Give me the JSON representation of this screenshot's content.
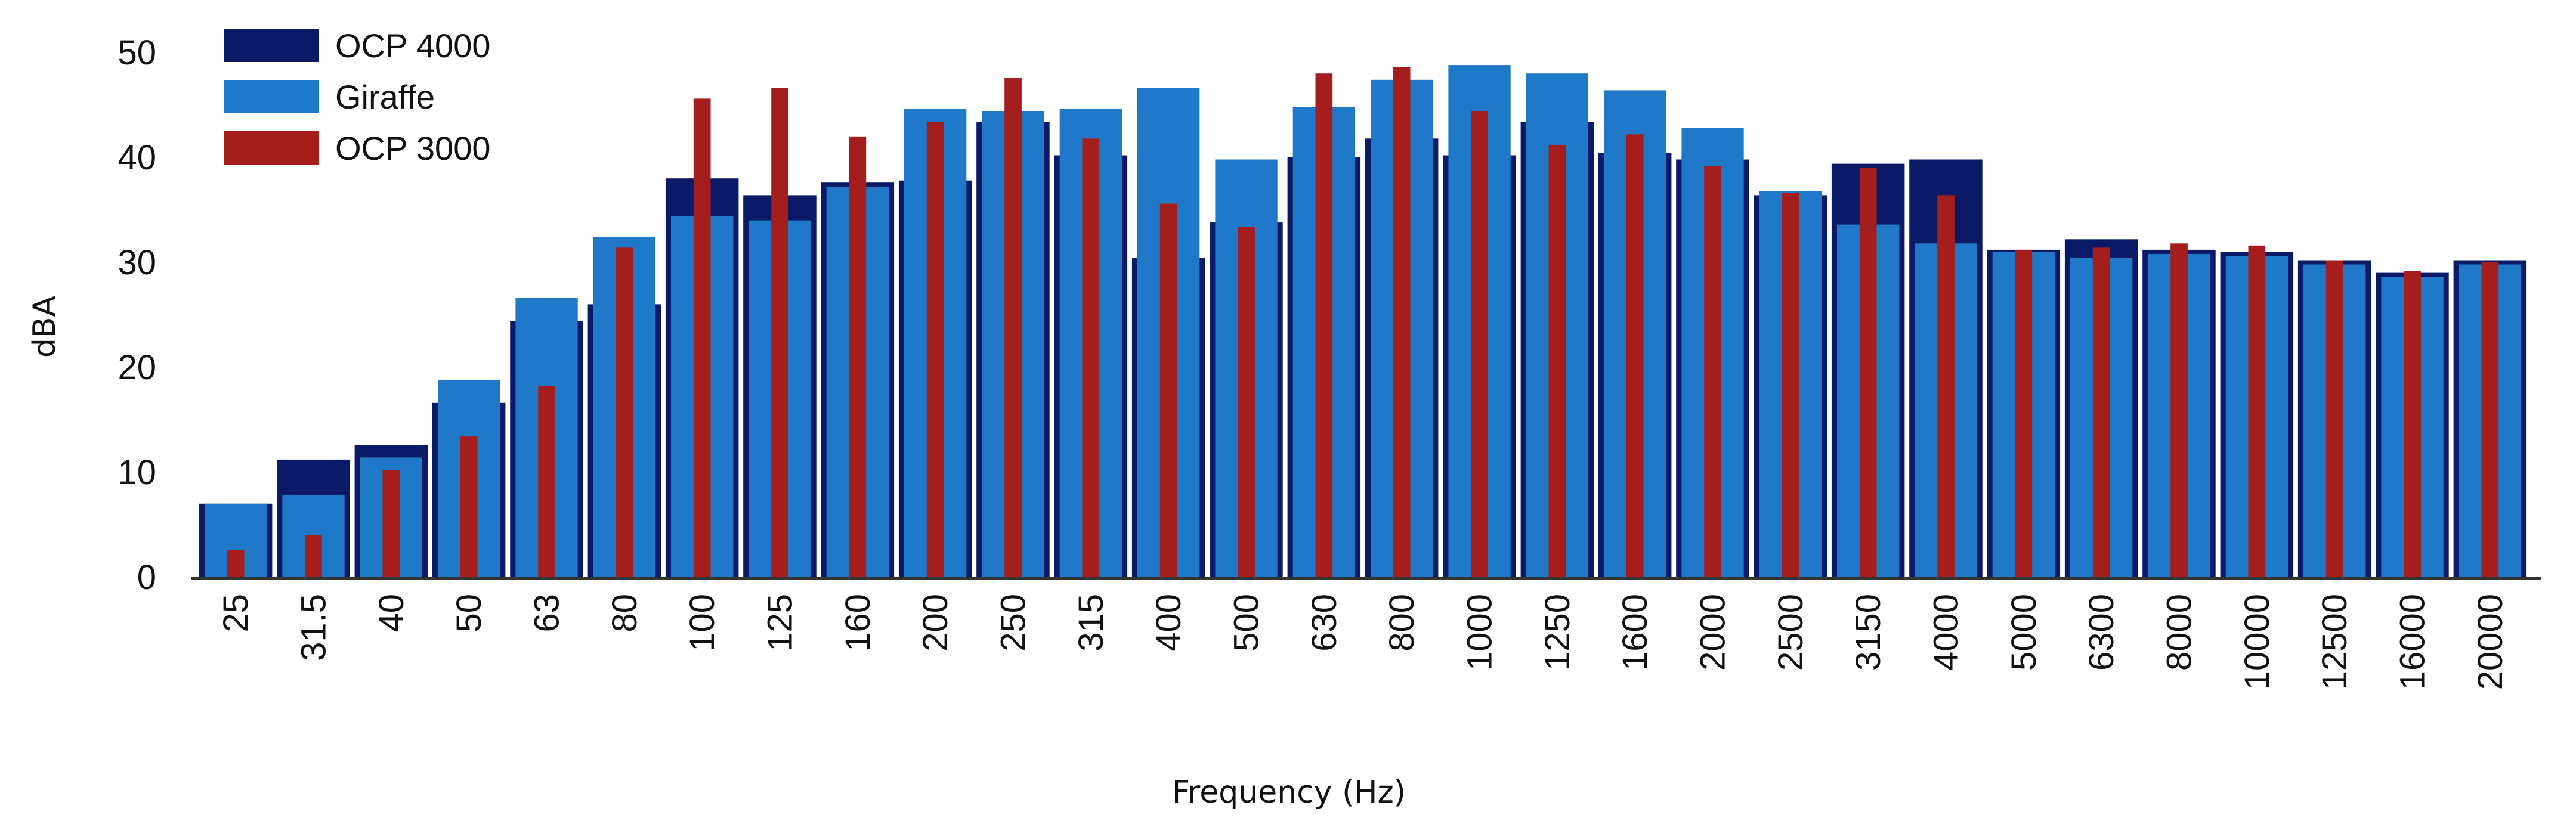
{
  "colors": {
    "ocp4000": "#0a1a66",
    "giraffe": "#1f78c8",
    "ocp3000": "#a41e1e",
    "axis": "#333333"
  },
  "chart_data": {
    "type": "bar",
    "title": "",
    "xlabel": "Frequency (Hz)",
    "ylabel": "dBA",
    "ylim": [
      0,
      50
    ],
    "yticks": [
      0,
      10,
      20,
      30,
      40,
      50
    ],
    "legend_position": "top-left",
    "grid": false,
    "categories": [
      "25",
      "31.5",
      "40",
      "50",
      "63",
      "80",
      "100",
      "125",
      "160",
      "200",
      "250",
      "315",
      "400",
      "500",
      "630",
      "800",
      "1000",
      "1250",
      "1600",
      "2000",
      "2500",
      "3150",
      "4000",
      "5000",
      "6300",
      "8000",
      "10000",
      "12500",
      "16000",
      "20000"
    ],
    "series": [
      {
        "name": "OCP 4000",
        "values": [
          7,
          11.2,
          12.6,
          16.6,
          24.4,
          26,
          38,
          36.4,
          37.6,
          37.8,
          43.4,
          40.2,
          30.4,
          33.8,
          40,
          41.8,
          40.2,
          43.4,
          40.4,
          39.8,
          36.4,
          39.4,
          39.8,
          31.2,
          32.2,
          31.2,
          31,
          30.2,
          29,
          30.2
        ]
      },
      {
        "name": "Giraffe",
        "values": [
          7,
          7.8,
          11.4,
          18.8,
          26.6,
          32.4,
          34.4,
          34,
          37.2,
          44.6,
          44.4,
          44.6,
          46.6,
          39.8,
          44.8,
          47.4,
          48.8,
          48,
          46.4,
          42.8,
          36.8,
          33.6,
          31.8,
          31,
          30.4,
          30.8,
          30.6,
          29.8,
          28.6,
          29.8
        ]
      },
      {
        "name": "OCP 3000",
        "values": [
          2.6,
          4,
          10.2,
          13.4,
          18.2,
          31.4,
          45.6,
          46.6,
          42,
          43.4,
          47.6,
          41.8,
          35.6,
          33.4,
          48,
          48.6,
          44.4,
          41.2,
          42.2,
          39.2,
          36.6,
          39,
          36.4,
          31.2,
          31.4,
          31.8,
          31.6,
          30.2,
          29.2,
          30
        ]
      }
    ]
  }
}
